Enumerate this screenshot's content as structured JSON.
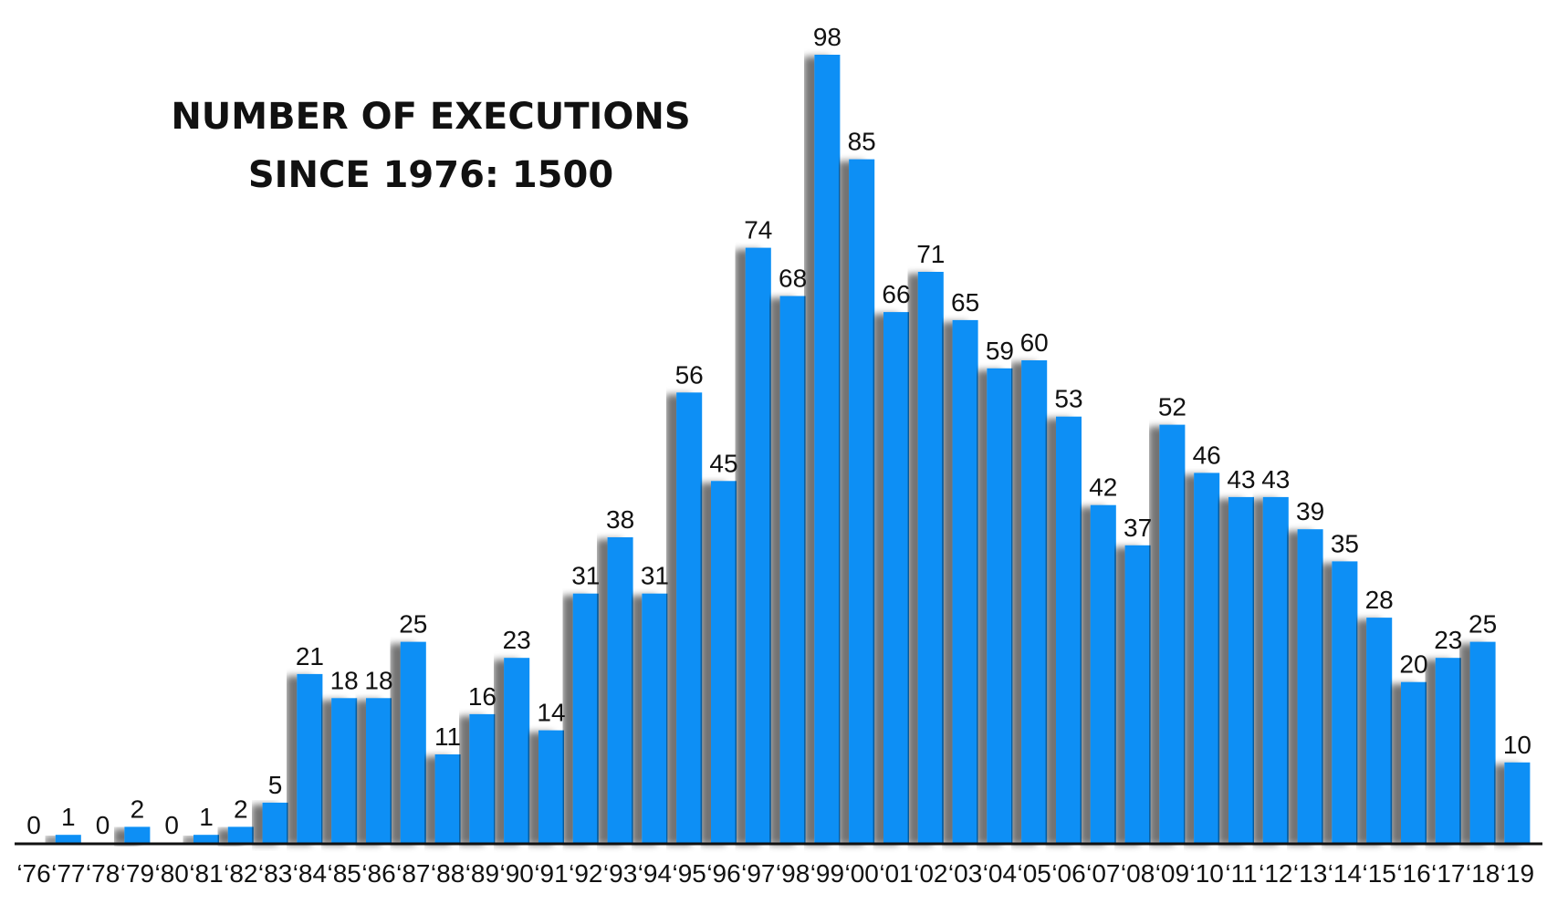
{
  "chart_data": {
    "type": "bar",
    "title": [
      "NUMBER OF EXECUTIONS",
      "SINCE 1976: 1500"
    ],
    "xlabel": "",
    "ylabel": "",
    "ylim": [
      0,
      98
    ],
    "grid": false,
    "categories": [
      "‘76",
      "‘77",
      "‘78",
      "‘79",
      "‘80",
      "‘81",
      "‘82",
      "‘83",
      "‘84",
      "‘85",
      "‘86",
      "‘87",
      "‘88",
      "‘89",
      "‘90",
      "‘91",
      "‘92",
      "‘93",
      "‘94",
      "‘95",
      "‘96",
      "‘97",
      "‘98",
      "‘99",
      "‘00",
      "‘01",
      "‘02",
      "‘03",
      "‘04",
      "‘05",
      "‘06",
      "‘07",
      "‘08",
      "‘09",
      "‘10",
      "‘11",
      "‘12",
      "‘13",
      "‘14",
      "‘15",
      "‘16",
      "‘17",
      "‘18",
      "‘19"
    ],
    "values": [
      0,
      1,
      0,
      2,
      0,
      1,
      2,
      5,
      21,
      18,
      18,
      25,
      11,
      16,
      23,
      14,
      31,
      38,
      31,
      56,
      45,
      74,
      68,
      98,
      85,
      66,
      71,
      65,
      59,
      60,
      53,
      42,
      37,
      52,
      46,
      43,
      43,
      39,
      35,
      28,
      20,
      23,
      25,
      10
    ],
    "colors": {
      "bar": "#0a8ff5",
      "axis": "#111111",
      "shadow": "#000000"
    }
  }
}
